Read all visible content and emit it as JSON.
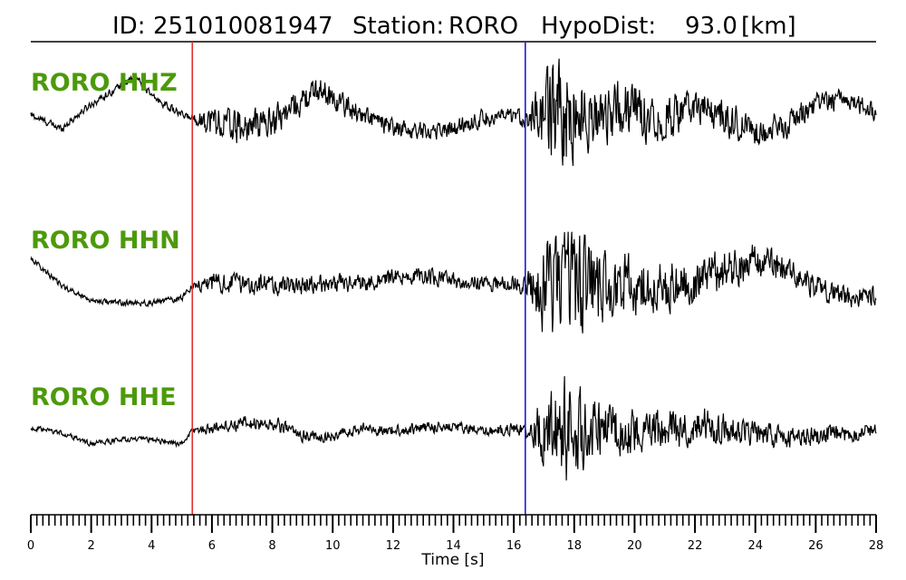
{
  "header": {
    "id_label": "ID:",
    "id_value": "251010081947",
    "station_label": "Station:",
    "station_value": "RORO",
    "hypodist_label": "HypoDist:",
    "hypodist_value": "93.0",
    "hypodist_unit": "[km]"
  },
  "colors": {
    "trace": "#000000",
    "channel_label": "#4c9a0a",
    "p_pick": "#e03030",
    "s_pick": "#2020c8",
    "axis": "#000000"
  },
  "chart_data": {
    "type": "line",
    "title": "ID: 251010081947   Station: RORO   HypoDist:    93.0 [km]",
    "xlabel": "Time [s]",
    "ylabel": "",
    "xlim": [
      0,
      28
    ],
    "x_major_ticks": [
      0,
      2,
      4,
      6,
      8,
      10,
      12,
      14,
      16,
      18,
      20,
      22,
      24,
      26,
      28
    ],
    "x_tick_labels": [
      "0",
      "2",
      "4",
      "6",
      "8",
      "10",
      "12",
      "14",
      "16",
      "18",
      "20",
      "22",
      "24",
      "26",
      "28"
    ],
    "x_minor_step": 0.2,
    "grid": false,
    "legend": "none",
    "picks": [
      {
        "phase": "P",
        "time": 5.35,
        "color": "#e03030"
      },
      {
        "phase": "S",
        "time": 16.38,
        "color": "#2020c8"
      }
    ],
    "series": [
      {
        "name": "RORO HHZ",
        "time_envelope": [
          0,
          1,
          2,
          3,
          3.5,
          4,
          5,
          5.35,
          6,
          7,
          8,
          9,
          9.6,
          10,
          11,
          12,
          13,
          14,
          15,
          16,
          16.38,
          17,
          17.6,
          18,
          18.5,
          19,
          20,
          21,
          22,
          23,
          24,
          25,
          26,
          27,
          28
        ],
        "baseline": [
          0.05,
          -0.2,
          0.25,
          0.6,
          0.75,
          0.4,
          0.05,
          0.0,
          -0.05,
          -0.2,
          -0.05,
          0.3,
          0.55,
          0.35,
          0.05,
          -0.2,
          -0.25,
          -0.2,
          0.0,
          0.0,
          0.0,
          0.05,
          0.1,
          0.05,
          0.0,
          0.1,
          0.15,
          0.0,
          0.2,
          0.0,
          -0.25,
          -0.15,
          0.25,
          0.35,
          0.1
        ],
        "noise_amplitude": [
          0.06,
          0.06,
          0.06,
          0.06,
          0.06,
          0.06,
          0.06,
          0.06,
          0.28,
          0.28,
          0.25,
          0.22,
          0.2,
          0.2,
          0.16,
          0.16,
          0.14,
          0.14,
          0.14,
          0.14,
          0.14,
          0.6,
          0.95,
          0.75,
          0.5,
          0.45,
          0.45,
          0.38,
          0.28,
          0.28,
          0.22,
          0.22,
          0.18,
          0.16,
          0.15
        ]
      },
      {
        "name": "RORO HHN",
        "time_envelope": [
          0,
          1,
          2,
          3,
          4,
          5,
          5.35,
          6,
          7,
          8,
          9,
          10,
          11,
          12,
          13,
          14,
          15,
          16,
          16.38,
          17,
          18,
          18.5,
          19,
          20,
          21,
          22,
          23,
          24,
          25,
          26,
          27,
          28
        ],
        "baseline": [
          0.55,
          0.0,
          -0.3,
          -0.35,
          -0.35,
          -0.25,
          0.0,
          0.05,
          0.05,
          0.0,
          0.0,
          0.05,
          0.05,
          0.15,
          0.2,
          0.1,
          0.05,
          0.05,
          0.0,
          0.0,
          0.05,
          0.05,
          0.0,
          0.0,
          -0.05,
          0.1,
          0.3,
          0.5,
          0.3,
          0.0,
          -0.25,
          -0.2
        ],
        "noise_amplitude": [
          0.05,
          0.05,
          0.05,
          0.05,
          0.05,
          0.06,
          0.06,
          0.18,
          0.18,
          0.18,
          0.17,
          0.16,
          0.16,
          0.15,
          0.15,
          0.15,
          0.15,
          0.15,
          0.15,
          0.8,
          0.95,
          0.85,
          0.6,
          0.5,
          0.45,
          0.4,
          0.35,
          0.3,
          0.25,
          0.22,
          0.18,
          0.18
        ]
      },
      {
        "name": "RORO HHE",
        "time_envelope": [
          0,
          1,
          2,
          3,
          4,
          5,
          5.35,
          6,
          7,
          8,
          9,
          10,
          11,
          12,
          13,
          14,
          15,
          16,
          16.38,
          17,
          17.8,
          18.5,
          19,
          20,
          21,
          22,
          23,
          24,
          25,
          26,
          27,
          28
        ],
        "baseline": [
          0.05,
          -0.05,
          -0.3,
          -0.2,
          -0.2,
          -0.3,
          0.0,
          0.05,
          0.15,
          0.15,
          -0.1,
          -0.15,
          0.05,
          0.0,
          0.05,
          0.1,
          -0.05,
          0.05,
          0.0,
          0.0,
          0.0,
          0.0,
          0.0,
          0.0,
          -0.05,
          0.15,
          0.05,
          -0.05,
          -0.2,
          -0.1,
          -0.1,
          0.05
        ],
        "noise_amplitude": [
          0.05,
          0.05,
          0.05,
          0.05,
          0.05,
          0.06,
          0.06,
          0.12,
          0.14,
          0.14,
          0.12,
          0.11,
          0.11,
          0.11,
          0.11,
          0.11,
          0.11,
          0.11,
          0.11,
          0.65,
          1.0,
          0.55,
          0.5,
          0.45,
          0.4,
          0.35,
          0.3,
          0.25,
          0.2,
          0.18,
          0.16,
          0.15
        ]
      }
    ]
  }
}
